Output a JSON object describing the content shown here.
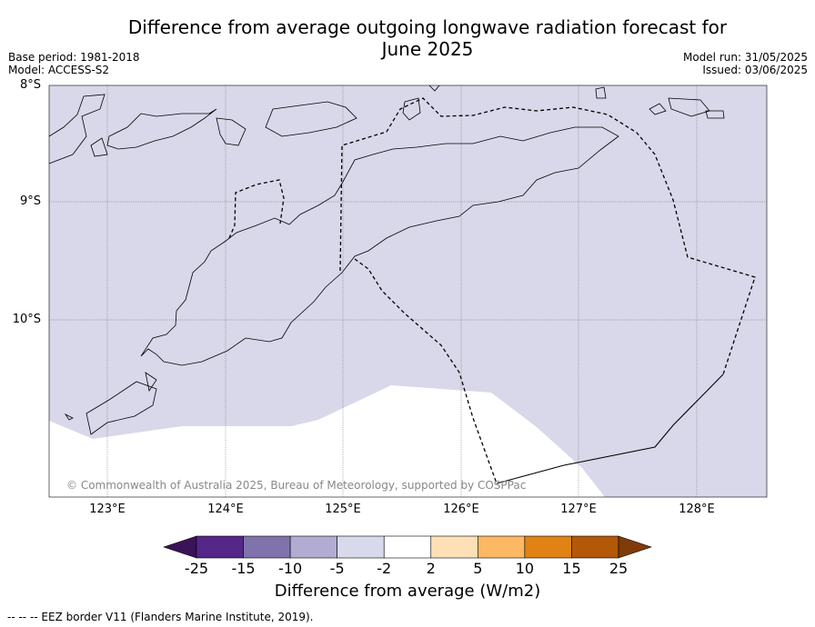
{
  "header": {
    "title_line1": "Difference from average outgoing longwave radiation forecast for",
    "title_line2": "June 2025",
    "base_period": "Base period: 1981-2018",
    "model": "Model: ACCESS-S2",
    "model_run": "Model run: 31/05/2025",
    "issued": "Issued: 03/06/2025"
  },
  "map": {
    "lat_labels": [
      "8°S",
      "9°S",
      "10°S"
    ],
    "lon_labels": [
      "123°E",
      "124°E",
      "125°E",
      "126°E",
      "127°E",
      "128°E"
    ],
    "anomaly_fill_color": "#d8d8ea",
    "copyright": "© Commonwealth of Australia 2025, Bureau of Meteorology, supported by COSPPac"
  },
  "colorbar": {
    "ticks": [
      "-25",
      "-15",
      "-10",
      "-5",
      "-2",
      "2",
      "5",
      "10",
      "15",
      "25"
    ],
    "colors": [
      "#3c1258",
      "#542788",
      "#8073ac",
      "#b2abd2",
      "#d8daeb",
      "#ffffff",
      "#fee0b6",
      "#fdb863",
      "#e08214",
      "#b35806",
      "#7f3b08"
    ],
    "label": "Difference from average (W/m2)"
  },
  "legend": {
    "eez": "--  --  -- EEZ border V11 (Flanders Marine Institute, 2019)."
  }
}
